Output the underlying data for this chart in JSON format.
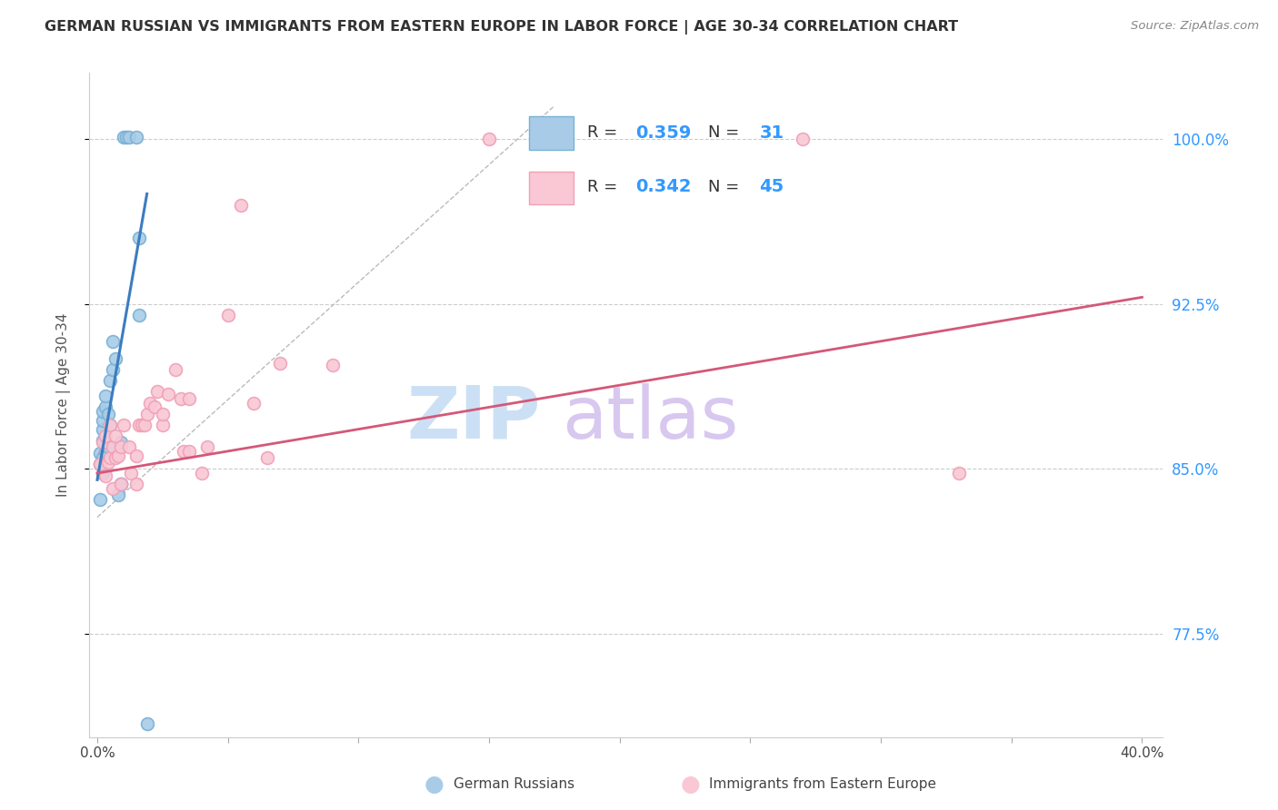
{
  "title": "GERMAN RUSSIAN VS IMMIGRANTS FROM EASTERN EUROPE IN LABOR FORCE | AGE 30-34 CORRELATION CHART",
  "source": "Source: ZipAtlas.com",
  "ylabel": "In Labor Force | Age 30-34",
  "xlim": [
    -0.003,
    0.408
  ],
  "ylim": [
    0.728,
    1.03
  ],
  "xticks": [
    0.0,
    0.05,
    0.1,
    0.15,
    0.2,
    0.25,
    0.3,
    0.35,
    0.4
  ],
  "xticklabels": [
    "0.0%",
    "",
    "",
    "",
    "",
    "",
    "",
    "",
    "40.0%"
  ],
  "yticks": [
    0.775,
    0.85,
    0.925,
    1.0
  ],
  "yticklabels": [
    "77.5%",
    "85.0%",
    "92.5%",
    "100.0%"
  ],
  "blue_R": "0.359",
  "blue_N": "31",
  "pink_R": "0.342",
  "pink_N": "45",
  "blue_color": "#a8cce8",
  "blue_edge_color": "#7ab0d4",
  "pink_color": "#f9c8d4",
  "pink_edge_color": "#f0a0b8",
  "blue_line_color": "#3b7dbf",
  "pink_line_color": "#d45878",
  "watermark_zip_color": "#cce0f5",
  "watermark_atlas_color": "#d8c8f0",
  "legend_label_blue": "German Russians",
  "legend_label_pink": "Immigrants from Eastern Europe",
  "blue_x": [
    0.001,
    0.001,
    0.001,
    0.002,
    0.002,
    0.002,
    0.002,
    0.002,
    0.002,
    0.003,
    0.003,
    0.003,
    0.003,
    0.004,
    0.004,
    0.005,
    0.005,
    0.006,
    0.006,
    0.007,
    0.008,
    0.009,
    0.009,
    0.009,
    0.01,
    0.011,
    0.012,
    0.015,
    0.016,
    0.016,
    0.019
  ],
  "blue_y": [
    0.836,
    0.852,
    0.857,
    0.848,
    0.855,
    0.863,
    0.868,
    0.872,
    0.876,
    0.858,
    0.862,
    0.878,
    0.883,
    0.86,
    0.875,
    0.87,
    0.89,
    0.895,
    0.908,
    0.9,
    0.838,
    0.843,
    0.843,
    0.862,
    1.001,
    1.001,
    1.001,
    1.001,
    0.92,
    0.955,
    0.734
  ],
  "pink_x": [
    0.001,
    0.002,
    0.003,
    0.003,
    0.004,
    0.005,
    0.005,
    0.006,
    0.006,
    0.007,
    0.007,
    0.008,
    0.009,
    0.009,
    0.01,
    0.012,
    0.013,
    0.015,
    0.015,
    0.016,
    0.017,
    0.018,
    0.019,
    0.02,
    0.022,
    0.023,
    0.025,
    0.025,
    0.027,
    0.03,
    0.032,
    0.033,
    0.035,
    0.035,
    0.04,
    0.042,
    0.05,
    0.055,
    0.06,
    0.065,
    0.07,
    0.09,
    0.15,
    0.27,
    0.33
  ],
  "pink_y": [
    0.852,
    0.862,
    0.847,
    0.865,
    0.853,
    0.855,
    0.87,
    0.841,
    0.86,
    0.855,
    0.865,
    0.856,
    0.843,
    0.86,
    0.87,
    0.86,
    0.848,
    0.843,
    0.856,
    0.87,
    0.87,
    0.87,
    0.875,
    0.88,
    0.878,
    0.885,
    0.87,
    0.875,
    0.884,
    0.895,
    0.882,
    0.858,
    0.858,
    0.882,
    0.848,
    0.86,
    0.92,
    0.97,
    0.88,
    0.855,
    0.898,
    0.897,
    1.0,
    1.0,
    0.848
  ],
  "blue_trend_x": [
    0.0,
    0.019
  ],
  "blue_trend_y": [
    0.845,
    0.975
  ],
  "pink_trend_x": [
    0.0,
    0.4
  ],
  "pink_trend_y": [
    0.848,
    0.928
  ],
  "ref_line_x": [
    0.0,
    0.175
  ],
  "ref_line_y": [
    0.828,
    1.015
  ]
}
